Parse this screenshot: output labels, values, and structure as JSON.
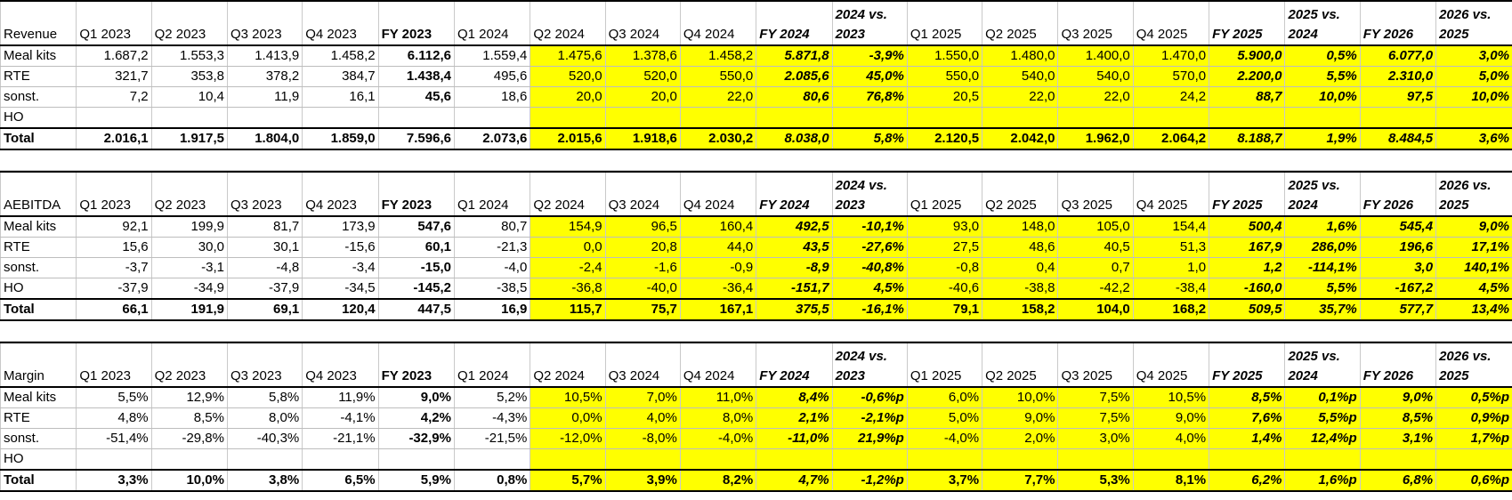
{
  "columns": [
    "Q1 2023",
    "Q2 2023",
    "Q3 2023",
    "Q4 2023",
    "FY 2023",
    "Q1 2024",
    "Q2 2024",
    "Q3 2024",
    "Q4 2024",
    "FY 2024",
    "2024 vs. 2023",
    "Q1 2025",
    "Q2 2025",
    "Q3 2025",
    "Q4 2025",
    "FY 2025",
    "2025 vs. 2024",
    "FY 2026",
    "2026 vs. 2025"
  ],
  "blocks": [
    {
      "title": "Revenue",
      "rows": [
        {
          "label": "Meal kits",
          "values": [
            "1.687,2",
            "1.553,3",
            "1.413,9",
            "1.458,2",
            "6.112,6",
            "1.559,4",
            "1.475,6",
            "1.378,6",
            "1.458,2",
            "5.871,8",
            "-3,9%",
            "1.550,0",
            "1.480,0",
            "1.400,0",
            "1.470,0",
            "5.900,0",
            "0,5%",
            "6.077,0",
            "3,0%"
          ]
        },
        {
          "label": "RTE",
          "values": [
            "321,7",
            "353,8",
            "378,2",
            "384,7",
            "1.438,4",
            "495,6",
            "520,0",
            "520,0",
            "550,0",
            "2.085,6",
            "45,0%",
            "550,0",
            "540,0",
            "540,0",
            "570,0",
            "2.200,0",
            "5,5%",
            "2.310,0",
            "5,0%"
          ]
        },
        {
          "label": "sonst.",
          "values": [
            "7,2",
            "10,4",
            "11,9",
            "16,1",
            "45,6",
            "18,6",
            "20,0",
            "20,0",
            "22,0",
            "80,6",
            "76,8%",
            "20,5",
            "22,0",
            "22,0",
            "24,2",
            "88,7",
            "10,0%",
            "97,5",
            "10,0%"
          ]
        },
        {
          "label": "HO",
          "values": [
            "",
            "",
            "",
            "",
            "",
            "",
            "",
            "",
            "",
            "",
            "",
            "",
            "",
            "",
            "",
            "",
            "",
            "",
            ""
          ]
        }
      ],
      "total": {
        "label": "Total",
        "values": [
          "2.016,1",
          "1.917,5",
          "1.804,0",
          "1.859,0",
          "7.596,6",
          "2.073,6",
          "2.015,6",
          "1.918,6",
          "2.030,2",
          "8.038,0",
          "5,8%",
          "2.120,5",
          "2.042,0",
          "1.962,0",
          "2.064,2",
          "8.188,7",
          "1,9%",
          "8.484,5",
          "3,6%"
        ]
      }
    },
    {
      "title": "AEBITDA",
      "rows": [
        {
          "label": "Meal kits",
          "values": [
            "92,1",
            "199,9",
            "81,7",
            "173,9",
            "547,6",
            "80,7",
            "154,9",
            "96,5",
            "160,4",
            "492,5",
            "-10,1%",
            "93,0",
            "148,0",
            "105,0",
            "154,4",
            "500,4",
            "1,6%",
            "545,4",
            "9,0%"
          ]
        },
        {
          "label": "RTE",
          "values": [
            "15,6",
            "30,0",
            "30,1",
            "-15,6",
            "60,1",
            "-21,3",
            "0,0",
            "20,8",
            "44,0",
            "43,5",
            "-27,6%",
            "27,5",
            "48,6",
            "40,5",
            "51,3",
            "167,9",
            "286,0%",
            "196,6",
            "17,1%"
          ]
        },
        {
          "label": "sonst.",
          "values": [
            "-3,7",
            "-3,1",
            "-4,8",
            "-3,4",
            "-15,0",
            "-4,0",
            "-2,4",
            "-1,6",
            "-0,9",
            "-8,9",
            "-40,8%",
            "-0,8",
            "0,4",
            "0,7",
            "1,0",
            "1,2",
            "-114,1%",
            "3,0",
            "140,1%"
          ]
        },
        {
          "label": "HO",
          "values": [
            "-37,9",
            "-34,9",
            "-37,9",
            "-34,5",
            "-145,2",
            "-38,5",
            "-36,8",
            "-40,0",
            "-36,4",
            "-151,7",
            "4,5%",
            "-40,6",
            "-38,8",
            "-42,2",
            "-38,4",
            "-160,0",
            "5,5%",
            "-167,2",
            "4,5%"
          ]
        }
      ],
      "total": {
        "label": "Total",
        "values": [
          "66,1",
          "191,9",
          "69,1",
          "120,4",
          "447,5",
          "16,9",
          "115,7",
          "75,7",
          "167,1",
          "375,5",
          "-16,1%",
          "79,1",
          "158,2",
          "104,0",
          "168,2",
          "509,5",
          "35,7%",
          "577,7",
          "13,4%"
        ]
      }
    },
    {
      "title": "Margin",
      "rows": [
        {
          "label": "Meal kits",
          "values": [
            "5,5%",
            "12,9%",
            "5,8%",
            "11,9%",
            "9,0%",
            "5,2%",
            "10,5%",
            "7,0%",
            "11,0%",
            "8,4%",
            "-0,6%p",
            "6,0%",
            "10,0%",
            "7,5%",
            "10,5%",
            "8,5%",
            "0,1%p",
            "9,0%",
            "0,5%p"
          ]
        },
        {
          "label": "RTE",
          "values": [
            "4,8%",
            "8,5%",
            "8,0%",
            "-4,1%",
            "4,2%",
            "-4,3%",
            "0,0%",
            "4,0%",
            "8,0%",
            "2,1%",
            "-2,1%p",
            "5,0%",
            "9,0%",
            "7,5%",
            "9,0%",
            "7,6%",
            "5,5%p",
            "8,5%",
            "0,9%p"
          ]
        },
        {
          "label": "sonst.",
          "values": [
            "-51,4%",
            "-29,8%",
            "-40,3%",
            "-21,1%",
            "-32,9%",
            "-21,5%",
            "-12,0%",
            "-8,0%",
            "-4,0%",
            "-11,0%",
            "21,9%p",
            "-4,0%",
            "2,0%",
            "3,0%",
            "4,0%",
            "1,4%",
            "12,4%p",
            "3,1%",
            "1,7%p"
          ]
        },
        {
          "label": "HO",
          "values": [
            "",
            "",
            "",
            "",
            "",
            "",
            "",
            "",
            "",
            "",
            "",
            "",
            "",
            "",
            "",
            "",
            "",
            "",
            ""
          ]
        }
      ],
      "total": {
        "label": "Total",
        "values": [
          "3,3%",
          "10,0%",
          "3,8%",
          "6,5%",
          "5,9%",
          "0,8%",
          "5,7%",
          "3,9%",
          "8,2%",
          "4,7%",
          "-1,2%p",
          "3,7%",
          "7,7%",
          "5,3%",
          "8,1%",
          "6,2%",
          "1,6%p",
          "6,8%",
          "0,6%p"
        ]
      }
    }
  ]
}
